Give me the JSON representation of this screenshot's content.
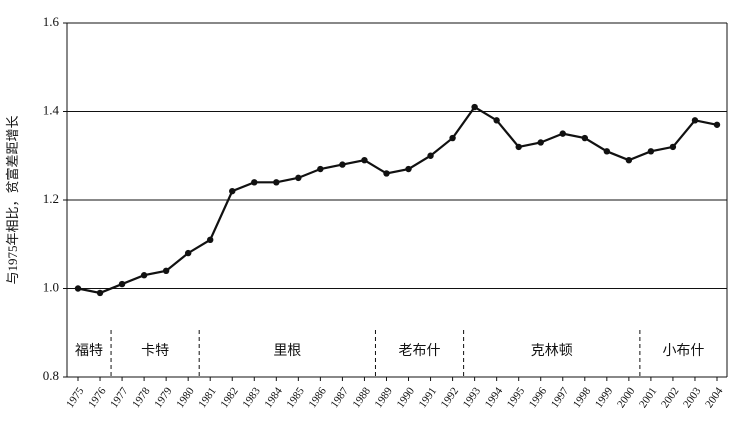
{
  "chart_data": {
    "type": "line",
    "y_label": "与1975年相比，贫富差距增长",
    "categories": [
      "1975",
      "1976",
      "1977",
      "1978",
      "1979",
      "1980",
      "1981",
      "1982",
      "1983",
      "1984",
      "1985",
      "1986",
      "1987",
      "1988",
      "1989",
      "1990",
      "1991",
      "1992",
      "1993",
      "1994",
      "1995",
      "1996",
      "1997",
      "1998",
      "1999",
      "2000",
      "2001",
      "2002",
      "2003",
      "2004"
    ],
    "series": [
      {
        "color": "#111111",
        "values": [
          1.0,
          0.99,
          1.01,
          1.03,
          1.04,
          1.08,
          1.11,
          1.22,
          1.24,
          1.24,
          1.25,
          1.27,
          1.28,
          1.29,
          1.26,
          1.27,
          1.3,
          1.34,
          1.41,
          1.38,
          1.32,
          1.33,
          1.35,
          1.34,
          1.31,
          1.29,
          1.31,
          1.32,
          1.38,
          1.37
        ]
      }
    ],
    "eras": [
      "福特",
      "卡特",
      "里根",
      "老布什",
      "克林顿",
      "小布什"
    ],
    "ylim": [
      0.8,
      1.6
    ],
    "yticks": [
      0.8,
      {
        "value": 1.0,
        "label": "1.0"
      },
      1.2,
      1.4,
      1.6
    ],
    "grid": true
  }
}
